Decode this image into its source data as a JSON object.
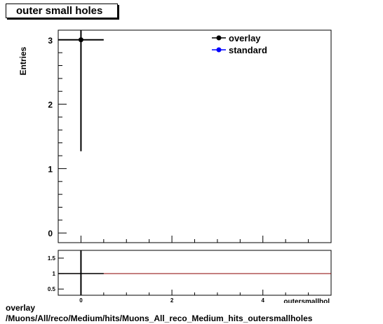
{
  "title": "outer small holes",
  "footer": {
    "line1": "overlay",
    "line2": "/Muons/All/reco/Medium/hits/Muons_All_reco_Medium_hits_outersmallholes"
  },
  "chart_data": [
    {
      "type": "scatter",
      "ylabel": "Entries",
      "xlim": [
        -0.5,
        5.5
      ],
      "ylim": [
        -0.15,
        3.15
      ],
      "y_ticks": [
        0,
        1,
        2,
        3
      ],
      "legend": {
        "placement": "top-right",
        "entries": [
          "overlay",
          "standard"
        ]
      },
      "series": [
        {
          "name": "overlay",
          "color": "#000000",
          "points": [
            {
              "x": 0,
              "y": 3,
              "xerr": 0.5,
              "yerr_low": 1.73,
              "yerr_high": 1.73
            }
          ]
        },
        {
          "name": "standard",
          "color": "#0000ff",
          "points": []
        }
      ]
    },
    {
      "type": "line",
      "xlim": [
        -0.5,
        5.5
      ],
      "ylim": [
        0.3,
        1.75
      ],
      "x_ticks": [
        0,
        2,
        4
      ],
      "y_ticks": [
        0.5,
        1,
        1.5
      ],
      "y_tick_labels": [
        "0.5",
        "1",
        "1.5"
      ],
      "xlabel_partial": "outersmallhol",
      "reference_line": {
        "y": 1,
        "color": "#8b0000"
      },
      "ratio_points": [
        {
          "x": 0,
          "y": 1,
          "xerr": 0.5
        }
      ]
    }
  ]
}
